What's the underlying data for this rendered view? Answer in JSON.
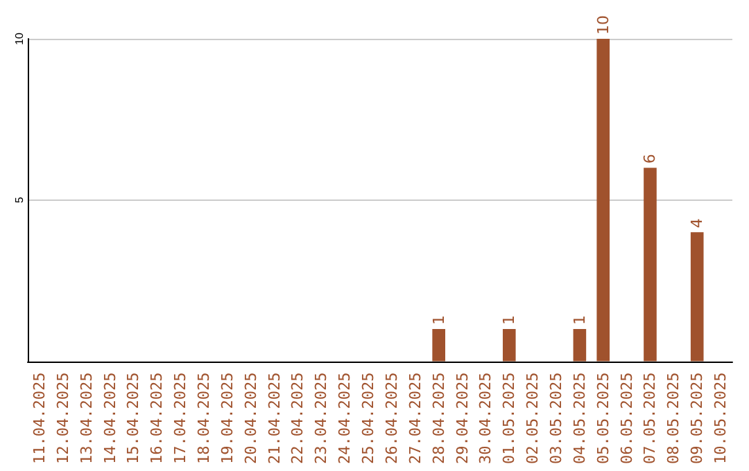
{
  "chart_data": {
    "type": "bar",
    "categories": [
      "11.04.2025",
      "12.04.2025",
      "13.04.2025",
      "14.04.2025",
      "15.04.2025",
      "16.04.2025",
      "17.04.2025",
      "18.04.2025",
      "19.04.2025",
      "20.04.2025",
      "21.04.2025",
      "22.04.2025",
      "23.04.2025",
      "24.04.2025",
      "25.04.2025",
      "26.04.2025",
      "27.04.2025",
      "28.04.2025",
      "29.04.2025",
      "30.04.2025",
      "01.05.2025",
      "02.05.2025",
      "03.05.2025",
      "04.05.2025",
      "05.05.2025",
      "06.05.2025",
      "07.05.2025",
      "08.05.2025",
      "09.05.2025",
      "10.05.2025"
    ],
    "values": [
      0,
      0,
      0,
      0,
      0,
      0,
      0,
      0,
      0,
      0,
      0,
      0,
      0,
      0,
      0,
      0,
      0,
      1,
      0,
      0,
      1,
      0,
      0,
      1,
      10,
      0,
      6,
      0,
      4,
      0
    ],
    "value_labels": [
      null,
      null,
      null,
      null,
      null,
      null,
      null,
      null,
      null,
      null,
      null,
      null,
      null,
      null,
      null,
      null,
      null,
      "1",
      null,
      null,
      "1",
      null,
      null,
      "1",
      "10",
      null,
      "6",
      null,
      "4",
      null
    ],
    "color": "#a0522d",
    "ylim": [
      0,
      10
    ],
    "yticks": [
      5,
      10
    ],
    "grid": "y"
  }
}
